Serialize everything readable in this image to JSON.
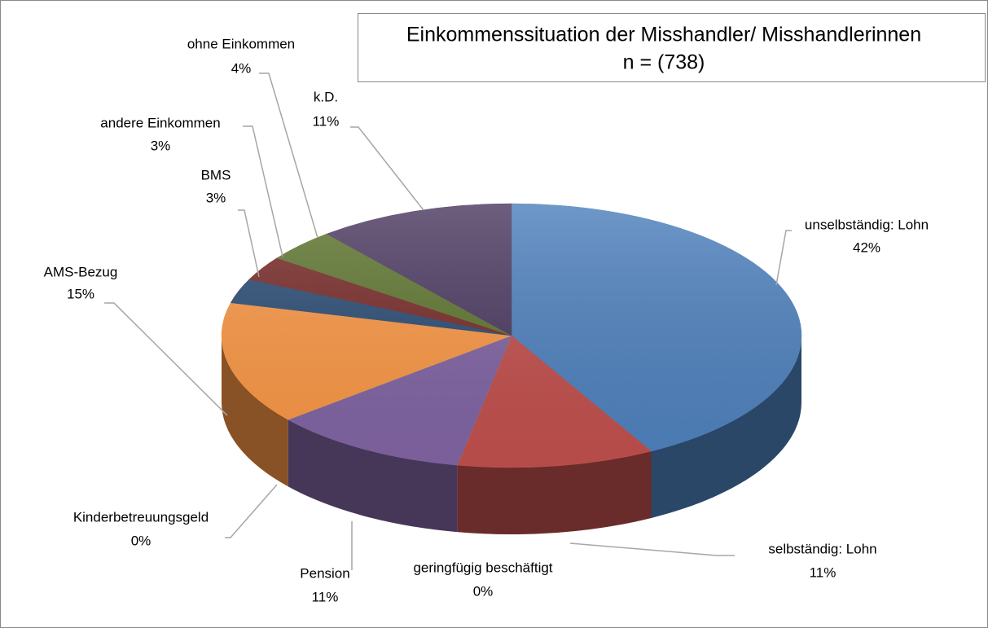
{
  "chart_data": {
    "type": "pie3d",
    "title": "Einkommenssituation der Misshandler/ Misshandlerinnen",
    "subtitle": "n = (738)",
    "categories": [
      "unselbständig: Lohn",
      "selbständig: Lohn",
      "geringfügig beschäftigt",
      "Pension",
      "Kinderbetreuungsgeld",
      "AMS-Bezug",
      "BMS",
      "andere Einkommen",
      "ohne Einkommen",
      "k.D."
    ],
    "values": [
      42,
      11,
      0,
      11,
      0,
      15,
      3,
      3,
      4,
      11
    ],
    "value_labels": [
      "42%",
      "11%",
      "0%",
      "11%",
      "0%",
      "15%",
      "3%",
      "3%",
      "4%",
      "11%"
    ],
    "colors": [
      "#4f81bd",
      "#c0504d",
      "#9bbb59",
      "#8064a2",
      "#4bacc6",
      "#f79646",
      "#2c4d75",
      "#772c2a",
      "#5f7530",
      "#4d3b62"
    ]
  }
}
